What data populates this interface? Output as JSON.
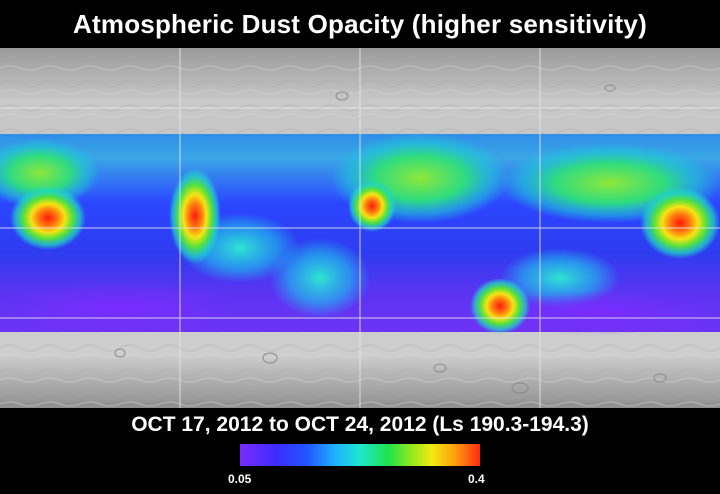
{
  "title": "Atmospheric Dust Opacity (higher sensitivity)",
  "date_range": "OCT 17, 2012 to OCT 24, 2012 (Ls 190.3-194.3)",
  "colorbar": {
    "min_label": "0.05",
    "max_label": "0.4",
    "colors": [
      "#7a2cff",
      "#3b2cff",
      "#1f57ff",
      "#1fb4ff",
      "#1fe6d0",
      "#20e24a",
      "#9ae81c",
      "#f2ea10",
      "#ff9a10",
      "#ff2a10"
    ]
  },
  "map": {
    "grid_lines": true,
    "basemap_color": "#c8c8c8",
    "dust_hotspots": [
      {
        "name": "hotspot-west",
        "value": 0.36
      },
      {
        "name": "hotspot-tharsis",
        "value": 0.38
      },
      {
        "name": "hotspot-central",
        "value": 0.3
      },
      {
        "name": "hotspot-south",
        "value": 0.34
      },
      {
        "name": "hotspot-east",
        "value": 0.39
      }
    ]
  }
}
